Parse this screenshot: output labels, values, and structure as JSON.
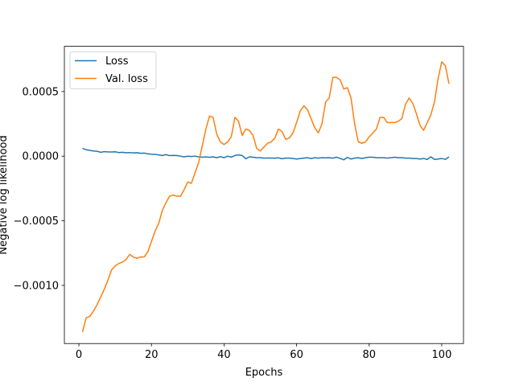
{
  "chart_data": {
    "type": "line",
    "title": "",
    "xlabel": "Epochs",
    "ylabel": "Negative log likelihood",
    "xlim": [
      -4,
      106
    ],
    "ylim": [
      -0.00145,
      0.00085
    ],
    "xticks": [
      0,
      20,
      40,
      60,
      80,
      100
    ],
    "xtick_labels": [
      "0",
      "20",
      "40",
      "60",
      "80",
      "100"
    ],
    "yticks": [
      -0.001,
      -0.0005,
      0.0,
      0.0005
    ],
    "ytick_labels": [
      "−0.0010",
      "−0.0005",
      "0.0000",
      "0.0005"
    ],
    "grid": false,
    "legend_position": "top-left",
    "x": [
      1,
      2,
      3,
      4,
      5,
      6,
      7,
      8,
      9,
      10,
      11,
      12,
      13,
      14,
      15,
      16,
      17,
      18,
      19,
      20,
      21,
      22,
      23,
      24,
      25,
      26,
      27,
      28,
      29,
      30,
      31,
      32,
      33,
      34,
      35,
      36,
      37,
      38,
      39,
      40,
      41,
      42,
      43,
      44,
      45,
      46,
      47,
      48,
      49,
      50,
      51,
      52,
      53,
      54,
      55,
      56,
      57,
      58,
      59,
      60,
      61,
      62,
      63,
      64,
      65,
      66,
      67,
      68,
      69,
      70,
      71,
      72,
      73,
      74,
      75,
      76,
      77,
      78,
      79,
      80,
      81,
      82,
      83,
      84,
      85,
      86,
      87,
      88,
      89,
      90,
      91,
      92,
      93,
      94,
      95,
      96,
      97,
      98,
      99,
      100,
      101,
      102
    ],
    "series": [
      {
        "name": "Loss",
        "color": "#1f77b4",
        "values": [
          6e-05,
          5e-05,
          4.5e-05,
          4e-05,
          3.8e-05,
          3e-05,
          3.5e-05,
          3.3e-05,
          3.2e-05,
          3.4e-05,
          2.8e-05,
          3e-05,
          2.6e-05,
          2.8e-05,
          2.5e-05,
          2.7e-05,
          2.2e-05,
          2.4e-05,
          1.8e-05,
          1.5e-05,
          1.4e-05,
          1e-05,
          5e-06,
          1.2e-05,
          4e-06,
          6e-06,
          5e-06,
          0.0,
          -6e-06,
          0.0,
          -3e-06,
          0.0,
          -5e-06,
          -8e-06,
          -6e-06,
          -9e-06,
          -5e-06,
          -1.2e-05,
          -3e-06,
          -1.2e-05,
          0.0,
          -8e-06,
          5e-06,
          1e-05,
          5e-06,
          -2e-05,
          -5e-06,
          -8e-06,
          -1.2e-05,
          -1.2e-05,
          -1.5e-05,
          -1.4e-05,
          -1.4e-05,
          -1.6e-05,
          -1.3e-05,
          -2e-05,
          -1.5e-05,
          -1.5e-05,
          -1.8e-05,
          -2.2e-05,
          -1.8e-05,
          -1.5e-05,
          -1.2e-05,
          -1.8e-05,
          -1.2e-05,
          -1.5e-05,
          -1.2e-05,
          -1.3e-05,
          -1.2e-05,
          -1.5e-05,
          -8e-06,
          -1.8e-05,
          -2.8e-05,
          -1e-05,
          -2.2e-05,
          -1.5e-05,
          -1.2e-05,
          -1.8e-05,
          -1.2e-05,
          -8e-06,
          -8e-06,
          -1.2e-05,
          -1.2e-05,
          -1.2e-05,
          -1.5e-05,
          -1.2e-05,
          -8e-06,
          -1.2e-05,
          -1.2e-05,
          -1.5e-05,
          -1.5e-05,
          -1.8e-05,
          -1.8e-05,
          -2.2e-05,
          -1.8e-05,
          -2.5e-05,
          -5e-06,
          -2.5e-05,
          -2.2e-05,
          -1.8e-05,
          -2.5e-05,
          -5e-06
        ]
      },
      {
        "name": "Val. loss",
        "color": "#ff7f0e",
        "values": [
          -0.00136,
          -0.00125,
          -0.00124,
          -0.0012,
          -0.00115,
          -0.00109,
          -0.00103,
          -0.00096,
          -0.00088,
          -0.00085,
          -0.00083,
          -0.00082,
          -0.0008,
          -0.00076,
          -0.00078,
          -0.00079,
          -0.00078,
          -0.00078,
          -0.00074,
          -0.00066,
          -0.00058,
          -0.00052,
          -0.00042,
          -0.00036,
          -0.00031,
          -0.0003,
          -0.00031,
          -0.00031,
          -0.00026,
          -0.0002,
          -0.00021,
          -0.00013,
          -5e-05,
          8e-05,
          0.00021,
          0.00031,
          0.0003,
          0.00017,
          0.00011,
          9e-05,
          0.00011,
          0.00015,
          0.0003,
          0.00027,
          0.00016,
          0.00021,
          0.0002,
          0.00016,
          6e-05,
          4e-05,
          7e-05,
          0.0001,
          0.00011,
          0.00014,
          0.00021,
          0.00019,
          0.00013,
          0.00014,
          0.00018,
          0.00026,
          0.00035,
          0.00039,
          0.00036,
          0.00029,
          0.00022,
          0.00018,
          0.00025,
          0.00042,
          0.00045,
          0.00061,
          0.00061,
          0.00059,
          0.00052,
          0.00053,
          0.00045,
          0.00025,
          0.00011,
          0.0001,
          0.00011,
          0.00015,
          0.00018,
          0.00021,
          0.0003,
          0.0003,
          0.00026,
          0.00026,
          0.00026,
          0.00027,
          0.00029,
          0.0004,
          0.00045,
          0.00041,
          0.00033,
          0.00024,
          0.0002,
          0.00026,
          0.00032,
          0.00042,
          0.0006,
          0.00073,
          0.0007,
          0.00056
        ]
      }
    ]
  }
}
